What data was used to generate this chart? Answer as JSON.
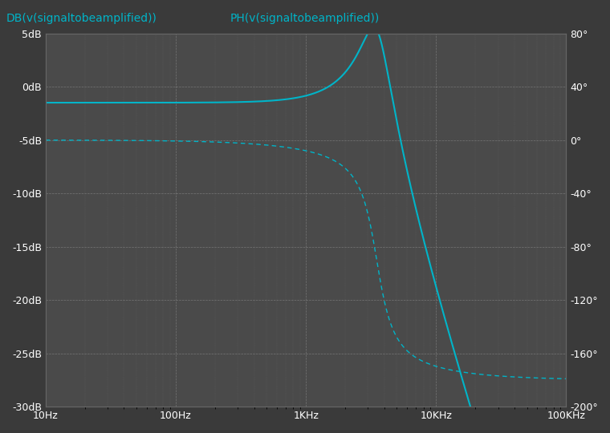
{
  "background_color": "#3a3a3a",
  "plot_bg_color": "#4a4a4a",
  "grid_color": "#888888",
  "line_color": "#00b4c8",
  "left_label": "DB(v(signaltobeamplified))",
  "right_label": "PH(v(signaltobeamplified))",
  "xlabel_ticks": [
    "10Hz",
    "100Hz",
    "1KHz",
    "10KHz",
    "100KHz"
  ],
  "xlabel_vals": [
    10,
    100,
    1000,
    10000,
    100000
  ],
  "left_yticks": [
    5,
    0,
    -5,
    -10,
    -15,
    -20,
    -25,
    -30
  ],
  "left_yticklabels": [
    "5dB",
    "0dB",
    "-5dB",
    "-10dB",
    "-15dB",
    "-20dB",
    "-25dB",
    "-30dB"
  ],
  "right_yticks": [
    80,
    40,
    0,
    -40,
    -80,
    -120,
    -160,
    -200
  ],
  "right_yticklabels": [
    "80°",
    "40°",
    "0°",
    "-40°",
    "-80°",
    "-120°",
    "-160°",
    "-200°"
  ],
  "xlim": [
    10,
    100000
  ],
  "left_ylim": [
    -30,
    5
  ],
  "right_ylim": [
    -200,
    80
  ],
  "title_fontsize": 10,
  "tick_fontsize": 9,
  "label_fontsize": 10
}
